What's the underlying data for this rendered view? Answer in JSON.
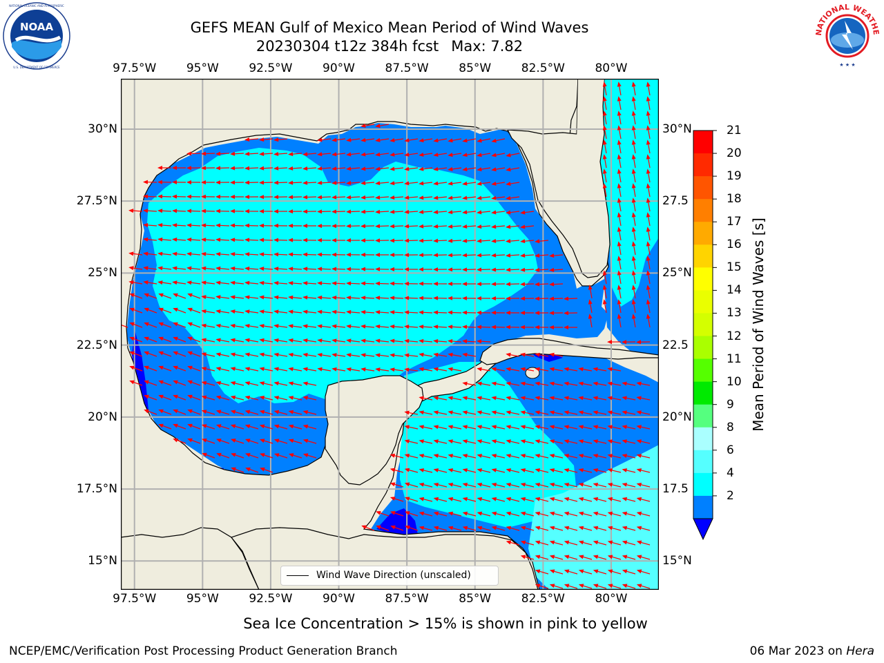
{
  "title": {
    "line1": "GEFS MEAN Gulf of Mexico Mean Period of Wind Waves",
    "run": "20230304 t12z 384h fcst",
    "max": "Max: 7.82"
  },
  "logos": {
    "left": {
      "name": "noaa-logo",
      "text": "NOAA",
      "ring_text": "NATIONAL OCEANIC AND ATMOSPHERIC ADMINISTRATION · U.S. DEPARTMENT OF COMMERCE"
    },
    "right": {
      "name": "nws-logo",
      "ring_text": "NATIONAL WEATHER SERVICE"
    }
  },
  "map": {
    "lon_ticks": [
      "97.5°W",
      "95°W",
      "92.5°W",
      "90°W",
      "87.5°W",
      "85°W",
      "82.5°W",
      "80°W"
    ],
    "lat_ticks_left": [
      "30°N",
      "27.5°N",
      "25°N",
      "22.5°N",
      "20°N",
      "17.5°N",
      "15°N"
    ],
    "lat_ticks_right": [
      "30°N",
      "27.5",
      "25°N",
      "22.5",
      "20°N",
      "17.5",
      "15°N"
    ],
    "extent": {
      "lon": [
        -98,
        -78.25
      ],
      "lat": [
        14,
        31.75
      ]
    },
    "legend": "Wind Wave Direction (unscaled)",
    "colors": {
      "land": "#efedde",
      "coast": "#000000",
      "arrow": "#ff0000",
      "grid": "#b0b0b0"
    }
  },
  "colorbar": {
    "label": "Mean Period of Wind Waves [s]",
    "ticks": [
      "21",
      "20",
      "19",
      "18",
      "17",
      "16",
      "15",
      "14",
      "13",
      "12",
      "11",
      "10",
      "9",
      "8",
      "6",
      "4",
      "2"
    ],
    "colors": [
      "#ff0000",
      "#ff2a00",
      "#ff5500",
      "#ff7f00",
      "#ffaa00",
      "#ffd400",
      "#ffff00",
      "#eaff00",
      "#d4ff00",
      "#aaff00",
      "#55ff00",
      "#00ea00",
      "#55ff7f",
      "#aaffff",
      "#55ffff",
      "#00ffff",
      "#0080ff",
      "#0000ff"
    ]
  },
  "footer": {
    "note": "Sea Ice Concentration > 15% is shown in pink to yellow",
    "left": "NCEP/EMC/Verification Post Processing Product Generation Branch",
    "date": "06 Mar 2023 on",
    "host": "Hera"
  }
}
